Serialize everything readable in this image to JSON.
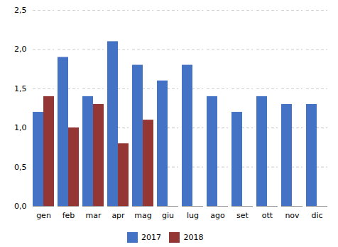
{
  "chart_data": {
    "type": "bar",
    "categories": [
      "gen",
      "feb",
      "mar",
      "apr",
      "mag",
      "giu",
      "lug",
      "ago",
      "set",
      "ott",
      "nov",
      "dic"
    ],
    "series": [
      {
        "name": "2017",
        "color": "#4472C4",
        "values": [
          1.2,
          1.9,
          1.4,
          2.1,
          1.8,
          1.6,
          1.8,
          1.4,
          1.2,
          1.4,
          1.3,
          1.3
        ]
      },
      {
        "name": "2018",
        "color": "#943634",
        "values": [
          1.4,
          1.0,
          1.3,
          0.8,
          1.1,
          null,
          null,
          null,
          null,
          null,
          null,
          null
        ]
      }
    ],
    "ylim": [
      0.0,
      2.5
    ],
    "yticks": [
      {
        "value": 0.0,
        "label": "0,0"
      },
      {
        "value": 0.5,
        "label": "0,5"
      },
      {
        "value": 1.0,
        "label": "1,0"
      },
      {
        "value": 1.5,
        "label": "1,5"
      },
      {
        "value": 2.0,
        "label": "2,0"
      },
      {
        "value": 2.5,
        "label": "2,5"
      }
    ],
    "grid": true,
    "legend": "bottom"
  }
}
